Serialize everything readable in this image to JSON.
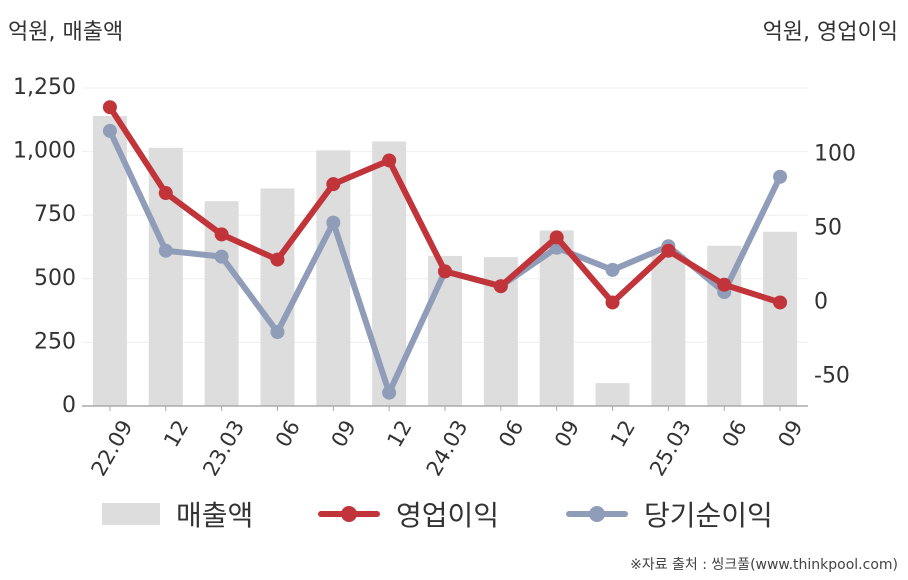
{
  "left_unit": "억원, 매출액",
  "right_unit": "억원, 영업이익",
  "source": "※자료 출처 : 씽크풀(www.thinkpool.com)",
  "colors": {
    "revenue": "#dddddd",
    "op": "#c0343a",
    "net": "#8f9db8",
    "grid": "#eeeeee"
  },
  "legend": [
    {
      "label": "매출액",
      "type": "bar"
    },
    {
      "label": "영업이익",
      "type": "line-op"
    },
    {
      "label": "당기순이익",
      "type": "line-net"
    }
  ],
  "chart_data": {
    "type": "bar",
    "categories": [
      "22.09",
      "12",
      "23.03",
      "06",
      "09",
      "12",
      "24.03",
      "06",
      "09",
      "12",
      "25.03",
      "06",
      "09"
    ],
    "y_left": {
      "min": 0,
      "max": 1250,
      "ticks": [
        "0",
        "250",
        "500",
        "750",
        "1,000",
        "1,250"
      ],
      "tick_values": [
        0,
        250,
        500,
        750,
        1000,
        1250
      ]
    },
    "y_right": {
      "min": -70,
      "max": 145,
      "ticks": [
        "-50",
        "0",
        "50",
        "100"
      ],
      "tick_values": [
        -50,
        0,
        50,
        100
      ]
    },
    "series": [
      {
        "name": "매출액",
        "type": "bar",
        "axis": "left",
        "values": [
          1140,
          1015,
          805,
          855,
          1005,
          1040,
          590,
          585,
          690,
          90,
          595,
          630,
          685
        ]
      },
      {
        "name": "영업이익",
        "type": "line",
        "axis": "right",
        "values": [
          132,
          74,
          46,
          29,
          80,
          96,
          21,
          11,
          44,
          0,
          35,
          12,
          0
        ]
      },
      {
        "name": "당기순이익",
        "type": "line",
        "axis": "right",
        "values": [
          116,
          35,
          31,
          -20,
          54,
          -61,
          21,
          11,
          37,
          22,
          38,
          7,
          85
        ]
      }
    ]
  }
}
